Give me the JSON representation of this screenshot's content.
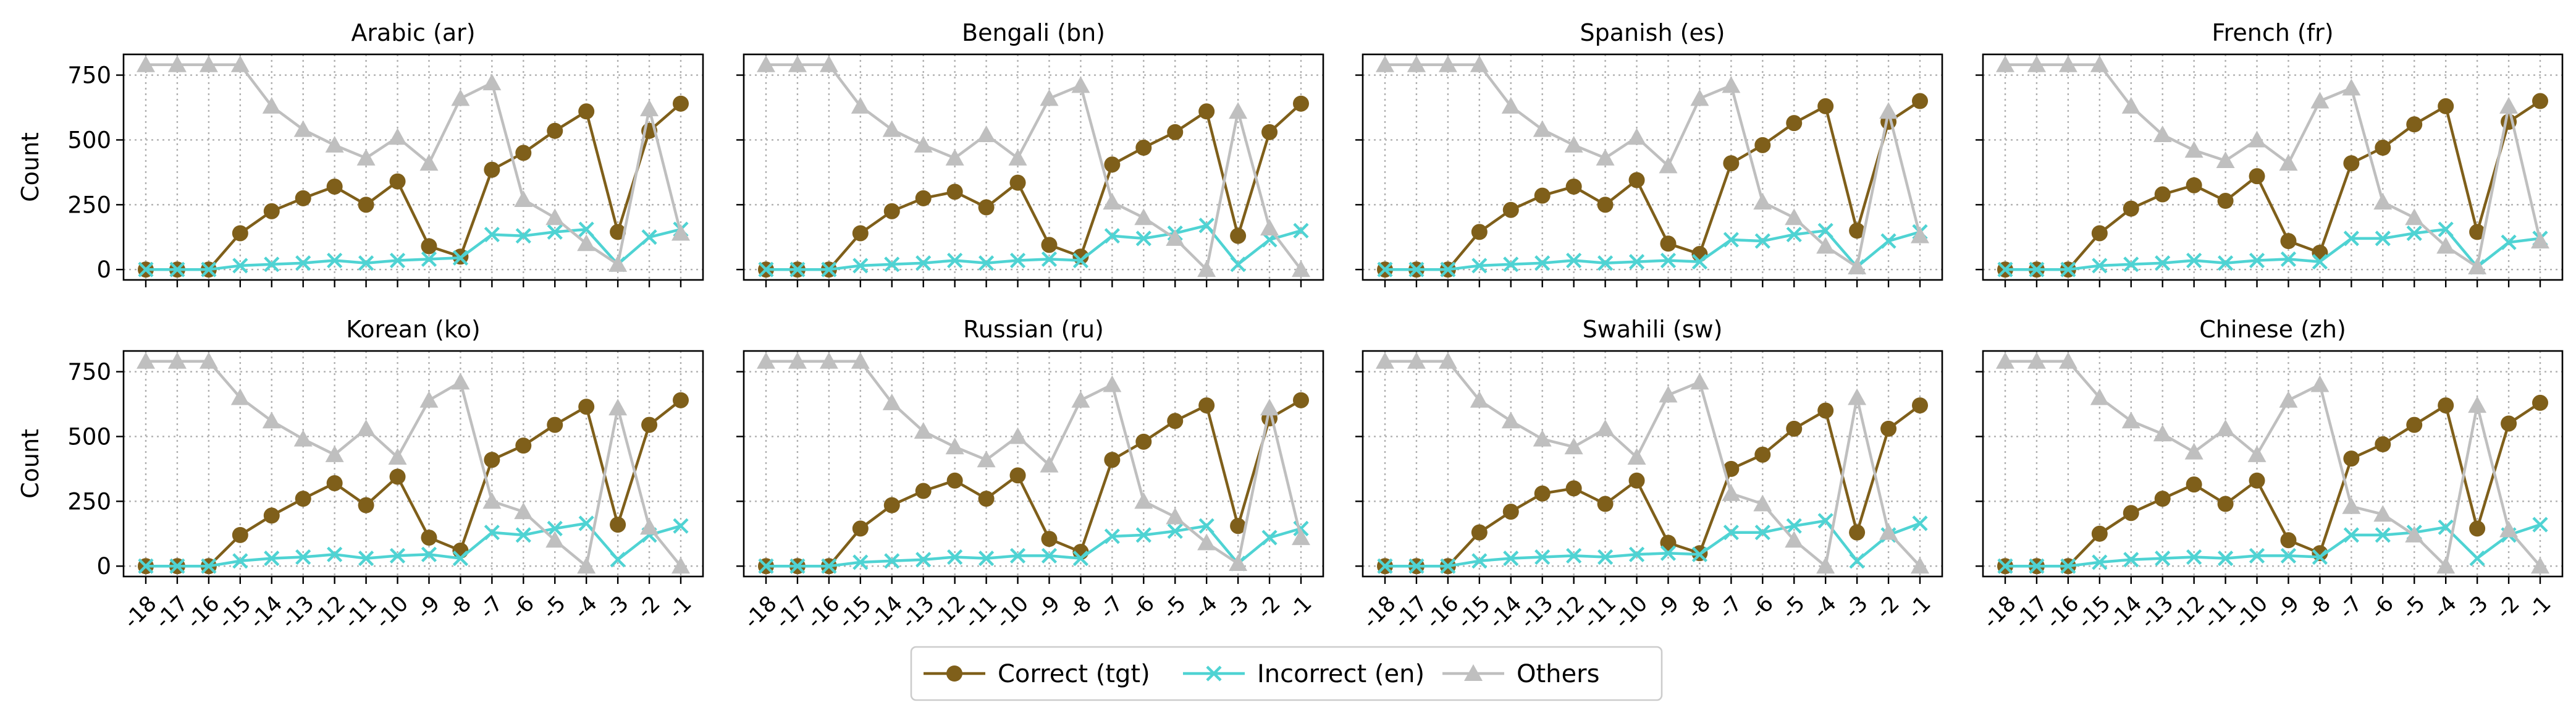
{
  "chart_data": {
    "type": "line",
    "layout": {
      "rows": 2,
      "cols": 4,
      "sharex": true,
      "sharey": true
    },
    "x": [
      "-18",
      "-17",
      "-16",
      "-15",
      "-14",
      "-13",
      "-12",
      "-11",
      "-10",
      "-9",
      "-8",
      "-7",
      "-6",
      "-5",
      "-4",
      "-3",
      "-2",
      "-1"
    ],
    "ylabel": "Count",
    "ylim": [
      -40,
      830
    ],
    "yticks": [
      0,
      250,
      500,
      750
    ],
    "grid": true,
    "legend": {
      "placement": "bottom-center",
      "entries": [
        {
          "name": "Correct (tgt)",
          "color": "#7f5f1a",
          "marker": "circle"
        },
        {
          "name": "Incorrect (en)",
          "color": "#4fd3d3",
          "marker": "x"
        },
        {
          "name": "Others",
          "color": "#bfbfbf",
          "marker": "triangle"
        }
      ]
    },
    "panels": [
      {
        "title": "Arabic (ar)",
        "series": [
          {
            "name": "Correct (tgt)",
            "values": [
              0,
              0,
              0,
              140,
              225,
              275,
              320,
              250,
              340,
              90,
              50,
              385,
              450,
              535,
              610,
              145,
              535,
              640
            ]
          },
          {
            "name": "Incorrect (en)",
            "values": [
              0,
              0,
              0,
              15,
              20,
              25,
              35,
              25,
              35,
              40,
              45,
              135,
              130,
              145,
              155,
              20,
              125,
              155
            ]
          },
          {
            "name": "Others",
            "values": [
              790,
              790,
              790,
              790,
              630,
              540,
              480,
              430,
              510,
              410,
              660,
              720,
              270,
              200,
              100,
              20,
              620,
              140
            ]
          }
        ]
      },
      {
        "title": "Bengali (bn)",
        "series": [
          {
            "name": "Correct (tgt)",
            "values": [
              0,
              0,
              0,
              140,
              225,
              275,
              300,
              240,
              335,
              95,
              50,
              405,
              470,
              530,
              610,
              130,
              530,
              640
            ]
          },
          {
            "name": "Incorrect (en)",
            "values": [
              0,
              0,
              0,
              15,
              20,
              25,
              35,
              25,
              35,
              40,
              35,
              130,
              120,
              140,
              170,
              20,
              115,
              150
            ]
          },
          {
            "name": "Others",
            "values": [
              790,
              790,
              790,
              630,
              540,
              480,
              430,
              520,
              430,
              660,
              710,
              260,
              200,
              120,
              0,
              610,
              160,
              0
            ]
          }
        ]
      },
      {
        "title": "Spanish (es)",
        "series": [
          {
            "name": "Correct (tgt)",
            "values": [
              0,
              0,
              0,
              145,
              230,
              285,
              320,
              250,
              345,
              100,
              60,
              410,
              480,
              565,
              630,
              150,
              570,
              650
            ]
          },
          {
            "name": "Incorrect (en)",
            "values": [
              0,
              0,
              0,
              15,
              20,
              25,
              35,
              25,
              30,
              35,
              30,
              115,
              110,
              135,
              150,
              10,
              110,
              145
            ]
          },
          {
            "name": "Others",
            "values": [
              790,
              790,
              790,
              790,
              630,
              540,
              480,
              430,
              510,
              400,
              660,
              710,
              260,
              200,
              90,
              10,
              610,
              130
            ]
          }
        ]
      },
      {
        "title": "French (fr)",
        "series": [
          {
            "name": "Correct (tgt)",
            "values": [
              0,
              0,
              0,
              140,
              235,
              290,
              325,
              265,
              360,
              110,
              65,
              410,
              470,
              560,
              630,
              145,
              570,
              650
            ]
          },
          {
            "name": "Incorrect (en)",
            "values": [
              0,
              0,
              0,
              15,
              20,
              25,
              35,
              25,
              35,
              40,
              30,
              120,
              120,
              140,
              155,
              10,
              105,
              120
            ]
          },
          {
            "name": "Others",
            "values": [
              790,
              790,
              790,
              790,
              630,
              520,
              460,
              420,
              500,
              410,
              650,
              700,
              260,
              200,
              90,
              10,
              630,
              110
            ]
          }
        ]
      },
      {
        "title": "Korean (ko)",
        "series": [
          {
            "name": "Correct (tgt)",
            "values": [
              0,
              0,
              0,
              120,
              195,
              260,
              320,
              235,
              345,
              110,
              60,
              410,
              465,
              545,
              615,
              160,
              545,
              640
            ]
          },
          {
            "name": "Incorrect (en)",
            "values": [
              0,
              0,
              0,
              20,
              30,
              35,
              45,
              30,
              40,
              45,
              30,
              130,
              120,
              145,
              165,
              25,
              120,
              155
            ]
          },
          {
            "name": "Others",
            "values": [
              790,
              790,
              790,
              650,
              560,
              490,
              430,
              530,
              420,
              640,
              710,
              250,
              210,
              100,
              0,
              610,
              150,
              0
            ]
          }
        ]
      },
      {
        "title": "Russian (ru)",
        "series": [
          {
            "name": "Correct (tgt)",
            "values": [
              0,
              0,
              0,
              145,
              235,
              290,
              330,
              260,
              350,
              105,
              55,
              410,
              480,
              560,
              620,
              155,
              570,
              640
            ]
          },
          {
            "name": "Incorrect (en)",
            "values": [
              0,
              0,
              0,
              15,
              20,
              25,
              35,
              30,
              40,
              40,
              30,
              115,
              120,
              135,
              155,
              10,
              110,
              145
            ]
          },
          {
            "name": "Others",
            "values": [
              790,
              790,
              790,
              790,
              630,
              520,
              460,
              410,
              500,
              390,
              640,
              700,
              250,
              190,
              90,
              10,
              610,
              110
            ]
          }
        ]
      },
      {
        "title": "Swahili (sw)",
        "series": [
          {
            "name": "Correct (tgt)",
            "values": [
              0,
              0,
              0,
              130,
              210,
              280,
              300,
              240,
              330,
              90,
              50,
              375,
              430,
              530,
              600,
              130,
              530,
              620
            ]
          },
          {
            "name": "Incorrect (en)",
            "values": [
              0,
              0,
              0,
              20,
              30,
              35,
              40,
              35,
              45,
              50,
              45,
              130,
              130,
              155,
              175,
              20,
              120,
              165
            ]
          },
          {
            "name": "Others",
            "values": [
              790,
              790,
              790,
              640,
              560,
              490,
              460,
              530,
              420,
              660,
              710,
              280,
              240,
              100,
              0,
              650,
              130,
              0
            ]
          }
        ]
      },
      {
        "title": "Chinese (zh)",
        "series": [
          {
            "name": "Correct (tgt)",
            "values": [
              0,
              0,
              0,
              125,
              205,
              260,
              315,
              240,
              330,
              100,
              50,
              415,
              470,
              545,
              620,
              145,
              550,
              630
            ]
          },
          {
            "name": "Incorrect (en)",
            "values": [
              0,
              0,
              0,
              15,
              25,
              30,
              35,
              30,
              40,
              40,
              35,
              120,
              120,
              130,
              150,
              30,
              120,
              160
            ]
          },
          {
            "name": "Others",
            "values": [
              790,
              790,
              790,
              650,
              560,
              510,
              440,
              530,
              430,
              640,
              700,
              230,
              200,
              120,
              0,
              620,
              140,
              0
            ]
          }
        ]
      }
    ]
  }
}
